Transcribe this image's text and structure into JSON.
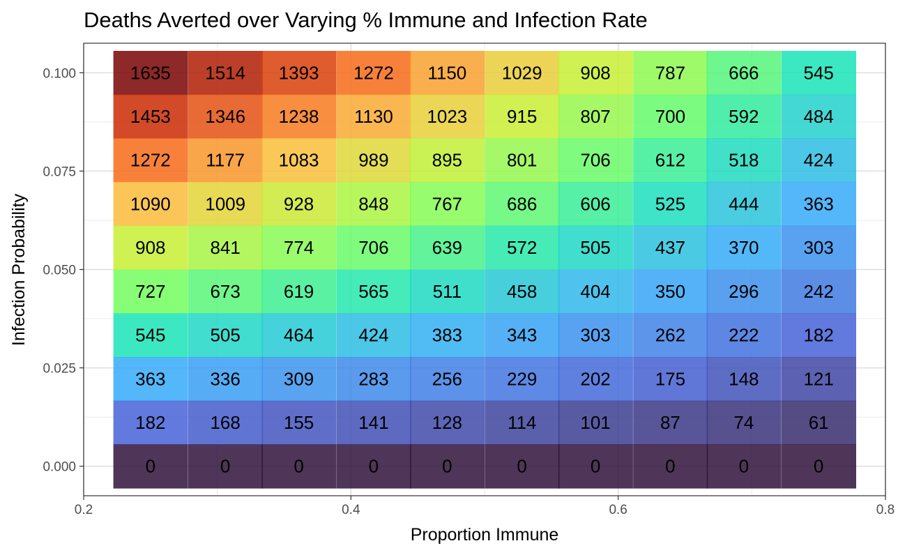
{
  "chart_data": {
    "type": "heatmap",
    "title": "Deaths Averted over Varying % Immune and Infection Rate",
    "xlabel": "Proportion Immune",
    "ylabel": "Infection Probability",
    "xlim": [
      0.2,
      0.8
    ],
    "ylim": [
      -0.0075,
      0.1075
    ],
    "x_ticks": [
      "0.2",
      "0.4",
      "0.6",
      "0.8"
    ],
    "y_ticks": [
      "0.000",
      "0.025",
      "0.050",
      "0.075",
      "0.100"
    ],
    "x": [
      0.25,
      0.306,
      0.361,
      0.417,
      0.472,
      0.528,
      0.583,
      0.639,
      0.694,
      0.75
    ],
    "y": [
      0.1,
      0.0889,
      0.0778,
      0.0667,
      0.0556,
      0.0444,
      0.0333,
      0.0222,
      0.0111,
      0.0
    ],
    "values": [
      [
        1635,
        1514,
        1393,
        1272,
        1150,
        1029,
        908,
        787,
        666,
        545
      ],
      [
        1453,
        1346,
        1238,
        1130,
        1023,
        915,
        807,
        700,
        592,
        484
      ],
      [
        1272,
        1177,
        1083,
        989,
        895,
        801,
        706,
        612,
        518,
        424
      ],
      [
        1090,
        1009,
        928,
        848,
        767,
        686,
        606,
        525,
        444,
        363
      ],
      [
        908,
        841,
        774,
        706,
        639,
        572,
        505,
        437,
        370,
        303
      ],
      [
        727,
        673,
        619,
        565,
        511,
        458,
        404,
        350,
        296,
        242
      ],
      [
        545,
        505,
        464,
        424,
        383,
        343,
        303,
        262,
        222,
        182
      ],
      [
        363,
        336,
        309,
        283,
        256,
        229,
        202,
        175,
        148,
        121
      ],
      [
        182,
        168,
        155,
        141,
        128,
        114,
        101,
        87,
        74,
        61
      ],
      [
        0,
        0,
        0,
        0,
        0,
        0,
        0,
        0,
        0,
        0
      ]
    ],
    "value_range": [
      0,
      1635
    ],
    "colorscale": [
      "#30123b",
      "#4662d7",
      "#36aaf9",
      "#1ae4b6",
      "#72fe5e",
      "#c7ef34",
      "#fabc3a",
      "#f66b19",
      "#cb2a04",
      "#7a0403"
    ],
    "cell_opacity": 0.85,
    "grid": true,
    "legend": "none"
  }
}
